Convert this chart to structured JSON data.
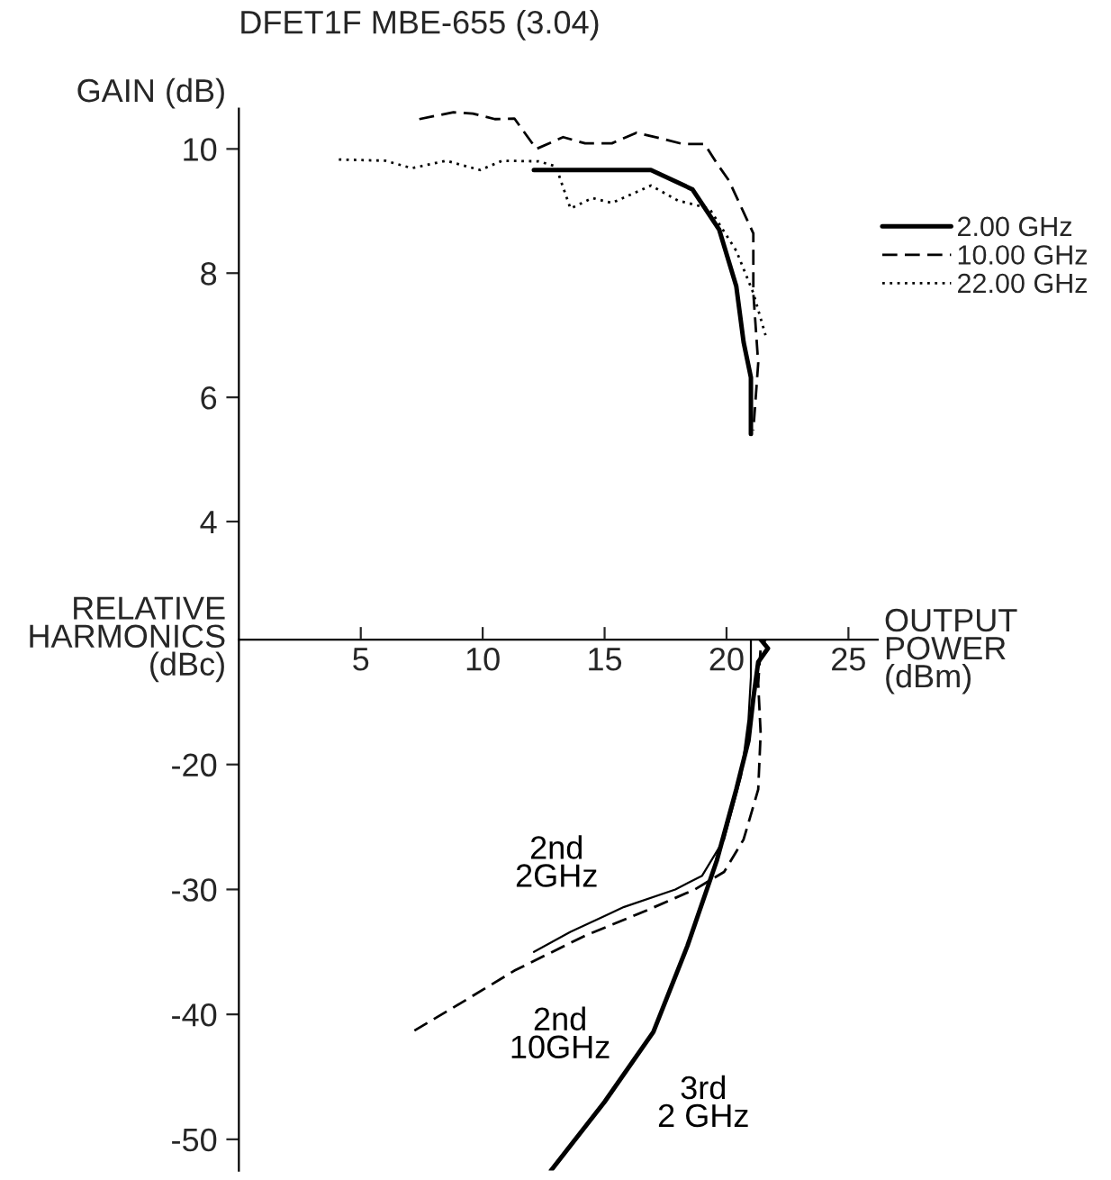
{
  "chart_data": [
    {
      "type": "line",
      "title": "DFET1F MBE-655 (3.04)",
      "ylabel": "GAIN (dB)",
      "xlim": [
        0,
        26.2
      ],
      "ylim": [
        2.1,
        10.65
      ],
      "yticks": [
        4,
        6,
        8,
        10
      ],
      "tick_labels": "y",
      "legend": "right",
      "grid": false,
      "series": [
        {
          "name": "2.00 GHz",
          "color": "#000000",
          "line_style": "solid",
          "x": [
            12.1,
            16.9,
            18.6,
            19.7,
            20.4,
            20.7,
            21.0,
            21.0
          ],
          "values": [
            9.66,
            9.66,
            9.35,
            8.7,
            7.79,
            6.89,
            6.32,
            5.41
          ]
        },
        {
          "name": "10.00 GHz",
          "color": "#000000",
          "line_style": "dashed",
          "x": [
            7.4,
            8.8,
            9.6,
            10.5,
            11.3,
            12.2,
            13.3,
            14.2,
            15.3,
            16.3,
            17.3,
            18.2,
            19.1,
            19.6,
            20.1,
            21.1,
            21.1,
            21.3,
            21.1
          ],
          "values": [
            10.48,
            10.59,
            10.57,
            10.48,
            10.49,
            10.0,
            10.19,
            10.09,
            10.09,
            10.26,
            10.17,
            10.08,
            10.08,
            9.77,
            9.49,
            8.64,
            7.68,
            6.55,
            5.47
          ]
        },
        {
          "name": "22.00 GHz",
          "color": "#000000",
          "line_style": "dotted",
          "x": [
            4.1,
            6.0,
            7.1,
            8.5,
            9.9,
            10.8,
            12.3,
            13.0,
            13.6,
            14.5,
            15.3,
            16.9,
            18.0,
            19.3,
            20.4,
            21.1,
            21.6
          ],
          "values": [
            9.83,
            9.81,
            9.69,
            9.81,
            9.66,
            9.81,
            9.8,
            9.72,
            9.04,
            9.21,
            9.13,
            9.41,
            9.17,
            9.04,
            8.36,
            7.68,
            7.0
          ]
        }
      ]
    },
    {
      "type": "line",
      "ylabel": "RELATIVE\nHARMONICS\n(dBc)",
      "xlabel": "OUTPUT\nPOWER\n(dBm)",
      "xlim": [
        0,
        26.2
      ],
      "xticks": [
        5,
        10,
        15,
        20,
        25
      ],
      "ylim": [
        -52.5,
        -10
      ],
      "yticks": [
        -20,
        -30,
        -40,
        -50
      ],
      "grid": false,
      "series": [
        {
          "name": "3rd\n2 GHz",
          "color": "#000000",
          "line_style": "solid",
          "x": [
            12.8,
            15.0,
            17.0,
            18.4,
            19.6,
            20.4,
            20.9,
            21.1,
            21.3,
            21.7,
            21.4
          ],
          "values": [
            -52.5,
            -47.0,
            -41.4,
            -34.5,
            -27.7,
            -22.0,
            -18.1,
            -14.7,
            -11.8,
            -10.7,
            -10.0
          ]
        },
        {
          "name": "2nd\n2GHz",
          "color": "#000000",
          "line_style": "solid",
          "x": [
            12.1,
            13.6,
            15.8,
            17.9,
            19.0,
            19.9,
            20.6,
            20.9,
            21.0,
            21.0
          ],
          "values": [
            -35.0,
            -33.4,
            -31.4,
            -30.0,
            -28.9,
            -26.0,
            -20.9,
            -16.4,
            -13.0,
            -10.0
          ]
        },
        {
          "name": "2nd\n10GHz",
          "color": "#000000",
          "line_style": "dashed",
          "x": [
            7.2,
            9.1,
            11.3,
            14.2,
            16.7,
            18.7,
            19.9,
            20.7,
            21.3,
            21.4,
            21.3,
            21.4,
            21.6
          ],
          "values": [
            -41.3,
            -39.1,
            -36.5,
            -33.7,
            -31.7,
            -30.0,
            -28.6,
            -26.0,
            -22.0,
            -17.5,
            -13.5,
            -10.7,
            -10.0
          ]
        }
      ]
    }
  ]
}
